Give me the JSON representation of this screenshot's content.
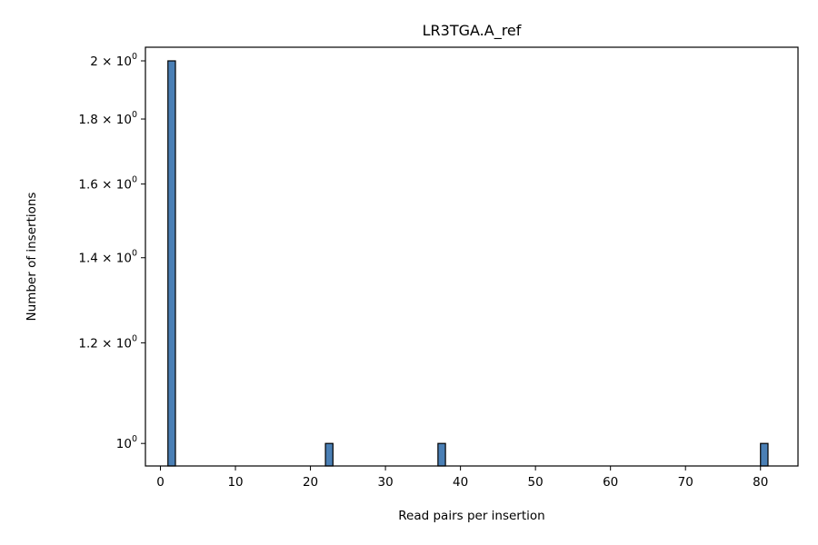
{
  "chart_data": {
    "type": "bar",
    "title": "LR3TGA.A_ref",
    "xlabel": "Read pairs per insertion",
    "ylabel": "Number of insertions",
    "xlim": [
      -2.0,
      85.0
    ],
    "ylim": [
      0.96,
      2.05
    ],
    "yscale": "log",
    "grid": false,
    "bar_color": "#4a7fb5",
    "bar_edge_color": "#000000",
    "x_ticks": [
      {
        "value": 0,
        "label": "0"
      },
      {
        "value": 10,
        "label": "10"
      },
      {
        "value": 20,
        "label": "20"
      },
      {
        "value": 30,
        "label": "30"
      },
      {
        "value": 40,
        "label": "40"
      },
      {
        "value": 50,
        "label": "50"
      },
      {
        "value": 60,
        "label": "60"
      },
      {
        "value": 70,
        "label": "70"
      },
      {
        "value": 80,
        "label": "80"
      }
    ],
    "y_ticks": [
      {
        "value": 1.0,
        "label": "10",
        "label_prefix": "",
        "exponent": "0"
      },
      {
        "value": 1.2,
        "label": "10",
        "label_prefix": "1.2 × ",
        "exponent": "0"
      },
      {
        "value": 1.4,
        "label": "10",
        "label_prefix": "1.4 × ",
        "exponent": "0"
      },
      {
        "value": 1.6,
        "label": "10",
        "label_prefix": "1.6 × ",
        "exponent": "0"
      },
      {
        "value": 1.8,
        "label": "10",
        "label_prefix": "1.8 × ",
        "exponent": "0"
      },
      {
        "value": 2.0,
        "label": "10",
        "label_prefix": "2 × ",
        "exponent": "0"
      }
    ],
    "bars": [
      {
        "x0": 1.0,
        "x1": 2.0,
        "count": 2
      },
      {
        "x0": 22.0,
        "x1": 23.0,
        "count": 1
      },
      {
        "x0": 37.0,
        "x1": 38.0,
        "count": 1
      },
      {
        "x0": 80.0,
        "x1": 81.0,
        "count": 1
      }
    ]
  }
}
